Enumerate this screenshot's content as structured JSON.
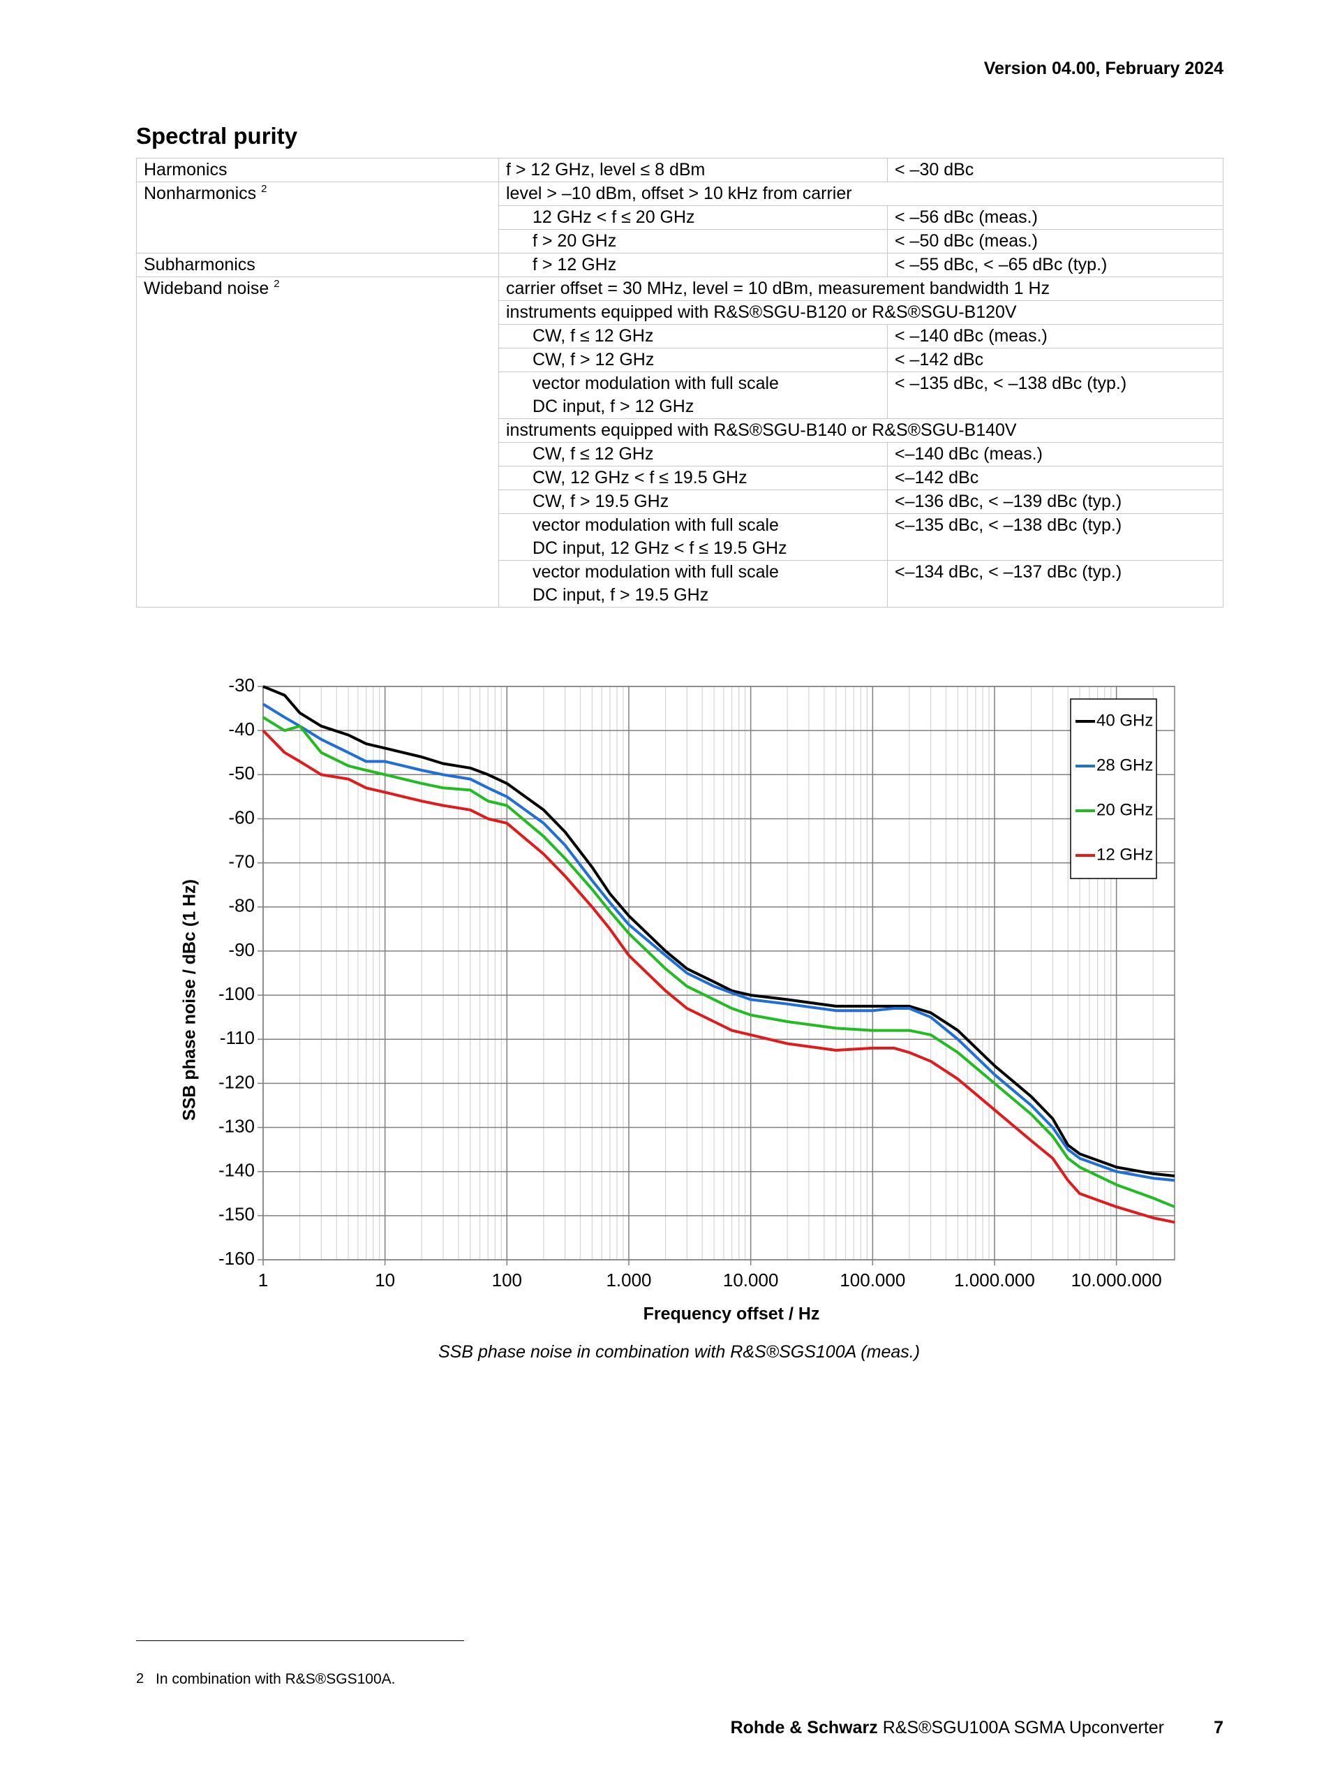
{
  "header": {
    "version": "Version 04.00, February 2024"
  },
  "section_title": "Spectral purity",
  "table": {
    "rows": [
      {
        "param": "Harmonics",
        "condition": "f > 12 GHz, level ≤ 8 dBm",
        "value": "< –30 dBc"
      },
      {
        "param": "Nonharmonics",
        "note": "2",
        "condition": "level > –10 dBm, offset > 10 kHz from carrier"
      },
      {
        "condition": "12 GHz < f ≤ 20 GHz",
        "value": "< –56 dBc (meas.)"
      },
      {
        "condition": "f > 20 GHz",
        "value": "< –50 dBc (meas.)"
      },
      {
        "param": "Subharmonics",
        "condition": "f > 12 GHz",
        "value": "< –55 dBc, < –65 dBc (typ.)"
      },
      {
        "param": "Wideband noise",
        "note": "2",
        "condition": "carrier offset = 30 MHz, level = 10 dBm, measurement bandwidth 1 Hz"
      },
      {
        "condition": "instruments equipped with R&S®SGU-B120 or R&S®SGU-B120V"
      },
      {
        "condition": "CW, f ≤ 12 GHz",
        "value": "< –140 dBc (meas.)"
      },
      {
        "condition": "CW, f > 12 GHz",
        "value": "< –142 dBc"
      },
      {
        "condition": [
          "vector modulation with full scale",
          "DC input, f > 12 GHz"
        ],
        "value": "< –135 dBc, < –138 dBc (typ.)"
      },
      {
        "condition": "instruments equipped with R&S®SGU-B140 or R&S®SGU-B140V"
      },
      {
        "condition": "CW, f ≤ 12 GHz",
        "value": "<–140 dBc (meas.)"
      },
      {
        "condition": "CW, 12 GHz < f ≤ 19.5 GHz",
        "value": "<–142 dBc"
      },
      {
        "condition": "CW, f > 19.5 GHz",
        "value": "<–136 dBc, < –139 dBc (typ.)"
      },
      {
        "condition": [
          "vector modulation with full scale",
          "DC input, 12 GHz < f ≤ 19.5 GHz"
        ],
        "value": "<–135 dBc, < –138 dBc (typ.)"
      },
      {
        "condition": [
          "vector modulation with full scale",
          "DC input, f > 19.5 GHz"
        ],
        "value": "<–134 dBc, < –137 dBc (typ.)"
      }
    ]
  },
  "chart_data": {
    "type": "line",
    "caption": "SSB phase noise in combination with R&S®SGS100A (meas.)",
    "x_label": "Frequency offset / Hz",
    "y_label": "SSB phase noise / dBc (1 Hz)",
    "xscale": "log",
    "grid": true,
    "legend": "upper right",
    "xlim": [
      1,
      30000000
    ],
    "ylim": [
      -160,
      -30
    ],
    "xticks": [
      1,
      10,
      100,
      {
        "value": 1000,
        "label": "1.000"
      },
      {
        "value": 10000,
        "label": "10.000"
      },
      {
        "value": 100000,
        "label": "100.000"
      },
      {
        "value": 1000000,
        "label": "1.000.000"
      },
      {
        "value": 10000000,
        "label": "10.000.000"
      }
    ],
    "yticks": [
      -160,
      -150,
      -140,
      -130,
      -120,
      -110,
      -100,
      -90,
      -80,
      -70,
      -60,
      -50,
      -40,
      -30
    ],
    "x": [
      1,
      1.5,
      2,
      3,
      5,
      7,
      10,
      20,
      30,
      50,
      70,
      100,
      200,
      300,
      500,
      700,
      1000,
      2000,
      3000,
      5000,
      7000,
      10000,
      20000,
      50000,
      100000,
      150000,
      200000,
      300000,
      500000,
      1000000,
      2000000,
      3000000,
      4000000,
      5000000,
      10000000,
      20000000,
      30000000
    ],
    "series": [
      {
        "name": "40 GHz",
        "color": "#000000",
        "values": [
          -30,
          -32,
          -36,
          -39,
          -41,
          -43,
          -44,
          -46,
          -47.5,
          -48.5,
          -50,
          -52,
          -58,
          -63,
          -71,
          -77,
          -82,
          -90,
          -94,
          -97,
          -99,
          -100,
          -101,
          -102.5,
          -102.5,
          -102.5,
          -102.5,
          -104,
          -108,
          -116,
          -123,
          -128,
          -134,
          -136,
          -139,
          -140.5,
          -141
        ]
      },
      {
        "name": "28 GHz",
        "color": "#1f6fd6",
        "values": [
          -34,
          -37,
          -39,
          -42,
          -45,
          -47,
          -47,
          -49,
          -50,
          -51,
          -53,
          -55,
          -61,
          -66,
          -74,
          -79,
          -84,
          -91,
          -95,
          -98,
          -99.5,
          -101,
          -102,
          -103.5,
          -103.5,
          -103,
          -103,
          -105,
          -110,
          -118,
          -125,
          -130,
          -135,
          -137,
          -140,
          -141.5,
          -142
        ]
      },
      {
        "name": "20 GHz",
        "color": "#22bb22",
        "values": [
          -37,
          -40,
          -39,
          -45,
          -48,
          -49,
          -50,
          -52,
          -53,
          -53.5,
          -56,
          -57,
          -64,
          -69,
          -76,
          -81,
          -86,
          -94,
          -98,
          -101,
          -103,
          -104.5,
          -106,
          -107.5,
          -108,
          -108,
          -108,
          -109,
          -113,
          -120,
          -127,
          -132,
          -137,
          -139,
          -143,
          -146,
          -148
        ]
      },
      {
        "name": "12 GHz",
        "color": "#e01b1b",
        "values": [
          -40,
          -45,
          -47,
          -50,
          -51,
          -53,
          -54,
          -56,
          -57,
          -58,
          -60,
          -61,
          -68,
          -73,
          -80,
          -85,
          -91,
          -99,
          -103,
          -106,
          -108,
          -109,
          -111,
          -112.5,
          -112,
          -112,
          -113,
          -115,
          -119,
          -126,
          -133,
          -137,
          -142,
          -145,
          -148,
          -150.5,
          -151.5
        ]
      }
    ]
  },
  "footnote": {
    "marker": "2",
    "text": "In combination with R&S®SGS100A."
  },
  "footer": {
    "company": "Rohde & Schwarz",
    "product": "R&S®SGU100A SGMA Upconverter",
    "page": "7"
  }
}
